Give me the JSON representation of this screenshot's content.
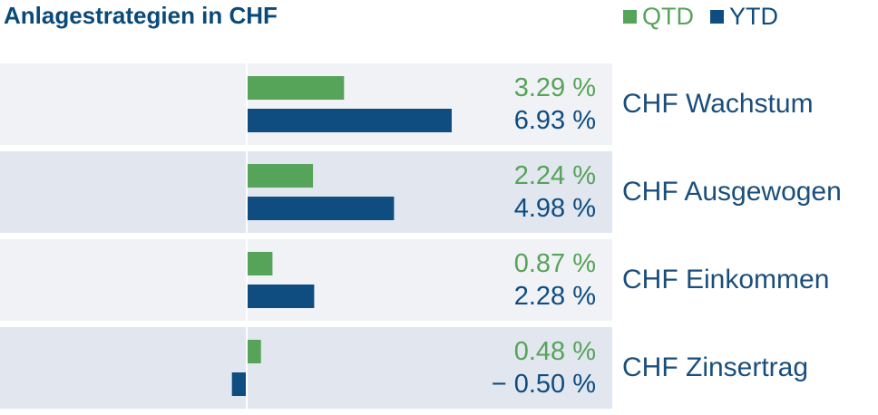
{
  "chart_data": {
    "type": "bar",
    "orientation": "horizontal",
    "title": "Anlagestrategien in CHF",
    "categories": [
      "CHF Wachstum",
      "CHF Ausgewogen",
      "CHF Einkommen",
      "CHF Zinsertrag"
    ],
    "series": [
      {
        "name": "QTD",
        "color": "#56a35a",
        "values": [
          3.29,
          2.24,
          0.87,
          0.48
        ],
        "labels": [
          "3.29 %",
          "2.24 %",
          "0.87 %",
          "0.48 %"
        ]
      },
      {
        "name": "YTD",
        "color": "#0f4c80",
        "values": [
          6.93,
          4.98,
          2.28,
          -0.5
        ],
        "labels": [
          "6.93 %",
          "4.98 %",
          "2.28 %",
          "− 0.50 %"
        ]
      }
    ],
    "legend_position": "top-right",
    "row_colors": [
      "#f0f2f6",
      "#e1e6ef"
    ],
    "xlim": [
      -8.3,
      12.5
    ]
  }
}
